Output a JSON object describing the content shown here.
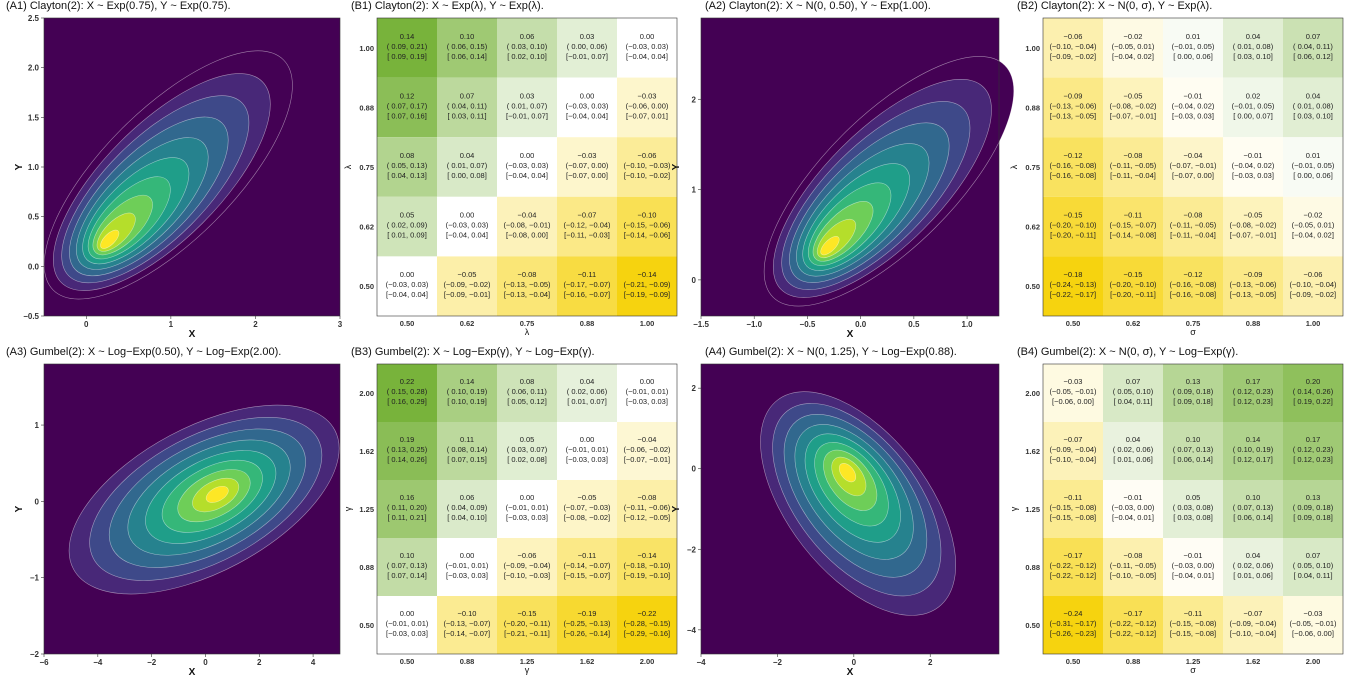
{
  "colors": {
    "density_background": "#440154",
    "density_low": "#3b528b",
    "density_high": "#fde725",
    "heat_negative": "#f6d30f",
    "heat_zero": "#ffffff",
    "heat_positive": "#78b33b"
  },
  "chart_data": [
    {
      "id": "A1",
      "type": "density",
      "title": "(A1) Clayton(2): X ~ Exp(0.75), Y ~ Exp(0.75).",
      "xlabel": "X",
      "ylabel": "Y",
      "xlim": [
        -0.5,
        3
      ],
      "ylim": [
        -0.5,
        2.5
      ],
      "xticks": [
        0,
        1,
        2,
        3
      ],
      "yticks": [
        -0.5,
        0.0,
        0.5,
        1.0,
        1.5,
        2.0,
        2.5
      ],
      "xtick_labels": [
        "0",
        "1",
        "2",
        "3"
      ],
      "ytick_labels": [
        "−0.5",
        "0.0",
        "0.5",
        "1.0",
        "1.5",
        "2.0",
        "2.5"
      ],
      "mode": [
        0.2,
        0.2
      ],
      "shape": "skewed",
      "contour_levels": 10
    },
    {
      "id": "B1",
      "type": "heatmap",
      "title": "(B1) Clayton(2): X ~ Exp(λ), Y ~ Exp(λ).",
      "xlabel": "λ",
      "ylabel": "λ",
      "x": [
        "0.50",
        "0.62",
        "0.75",
        "0.88",
        "1.00"
      ],
      "y": [
        "0.50",
        "0.62",
        "0.75",
        "0.88",
        "1.00"
      ],
      "rows": [
        {
          "y": "1.00",
          "cells": [
            [
              "0.14",
              "( 0.09, 0.21)",
              "[ 0.09, 0.19]"
            ],
            [
              "0.10",
              "( 0.06, 0.15)",
              "[ 0.06, 0.14]"
            ],
            [
              "0.06",
              "( 0.03, 0.10)",
              "[ 0.02, 0.10]"
            ],
            [
              "0.03",
              "( 0.00, 0.06)",
              "[−0.01, 0.07]"
            ],
            [
              "0.00",
              "(−0.03, 0.03)",
              "[−0.04, 0.04]"
            ]
          ]
        },
        {
          "y": "0.88",
          "cells": [
            [
              "0.12",
              "( 0.07, 0.17)",
              "[ 0.07, 0.16]"
            ],
            [
              "0.07",
              "( 0.04, 0.11)",
              "[ 0.03, 0.11]"
            ],
            [
              "0.03",
              "( 0.01, 0.07)",
              "[−0.01, 0.07]"
            ],
            [
              "0.00",
              "(−0.03, 0.03)",
              "[−0.04, 0.04]"
            ],
            [
              "−0.03",
              "(−0.06, 0.00)",
              "[−0.07, 0.01]"
            ]
          ]
        },
        {
          "y": "0.75",
          "cells": [
            [
              "0.08",
              "( 0.05, 0.13)",
              "[ 0.04, 0.13]"
            ],
            [
              "0.04",
              "( 0.01, 0.07)",
              "[ 0.00, 0.08]"
            ],
            [
              "0.00",
              "(−0.03, 0.03)",
              "[−0.04, 0.04]"
            ],
            [
              "−0.03",
              "(−0.07, 0.00)",
              "[−0.07, 0.00]"
            ],
            [
              "−0.06",
              "(−0.10, −0.03)",
              "[−0.10, −0.02]"
            ]
          ]
        },
        {
          "y": "0.62",
          "cells": [
            [
              "0.05",
              "( 0.02, 0.09)",
              "[ 0.01, 0.09]"
            ],
            [
              "0.00",
              "(−0.03, 0.03)",
              "[−0.04, 0.04]"
            ],
            [
              "−0.04",
              "(−0.08, −0.01)",
              "[−0.08, 0.00]"
            ],
            [
              "−0.07",
              "(−0.12, −0.04)",
              "[−0.11, −0.03]"
            ],
            [
              "−0.10",
              "(−0.15, −0.06)",
              "[−0.14, −0.06]"
            ]
          ]
        },
        {
          "y": "0.50",
          "cells": [
            [
              "0.00",
              "(−0.03, 0.03)",
              "[−0.04, 0.04]"
            ],
            [
              "−0.05",
              "(−0.09, −0.02)",
              "[−0.09, −0.01]"
            ],
            [
              "−0.08",
              "(−0.13, −0.05)",
              "[−0.13, −0.04]"
            ],
            [
              "−0.11",
              "(−0.17, −0.07)",
              "[−0.16, −0.07]"
            ],
            [
              "−0.14",
              "(−0.21, −0.09)",
              "[−0.19, −0.09]"
            ]
          ]
        }
      ]
    },
    {
      "id": "A2",
      "type": "density",
      "title": "(A2) Clayton(2): X ~ N(0, 0.50), Y ~ Exp(1.00).",
      "xlabel": "X",
      "ylabel": "Y",
      "xlim": [
        -1.5,
        1.3
      ],
      "ylim": [
        -0.4,
        2.9
      ],
      "xticks": [
        -1.5,
        -1.0,
        -0.5,
        0.0,
        0.5,
        1.0
      ],
      "yticks": [
        0,
        1,
        2
      ],
      "xtick_labels": [
        "−1.5",
        "−1.0",
        "−0.5",
        "0.0",
        "0.5",
        "1.0"
      ],
      "ytick_labels": [
        "0",
        "1",
        "2"
      ],
      "mode": [
        -0.35,
        0.3
      ],
      "shape": "skewed",
      "contour_levels": 10
    },
    {
      "id": "B2",
      "type": "heatmap",
      "title": "(B2) Clayton(2): X ~ N(0, σ), Y ~ Exp(λ).",
      "xlabel": "σ",
      "ylabel": "λ",
      "x": [
        "0.50",
        "0.62",
        "0.75",
        "0.88",
        "1.00"
      ],
      "y": [
        "0.50",
        "0.62",
        "0.75",
        "0.88",
        "1.00"
      ],
      "rows": [
        {
          "y": "1.00",
          "cells": [
            [
              "−0.06",
              "(−0.10, −0.04)",
              "[−0.09, −0.02]"
            ],
            [
              "−0.02",
              "(−0.05, 0.01)",
              "[−0.04, 0.02]"
            ],
            [
              "0.01",
              "(−0.01, 0.05)",
              "[ 0.00, 0.06]"
            ],
            [
              "0.04",
              "( 0.01, 0.08)",
              "[ 0.03, 0.10]"
            ],
            [
              "0.07",
              "( 0.04, 0.11)",
              "[ 0.06, 0.12]"
            ]
          ]
        },
        {
          "y": "0.88",
          "cells": [
            [
              "−0.09",
              "(−0.13, −0.06)",
              "[−0.13, −0.05]"
            ],
            [
              "−0.05",
              "(−0.08, −0.02)",
              "[−0.07, −0.01]"
            ],
            [
              "−0.01",
              "(−0.04, 0.02)",
              "[−0.03, 0.03]"
            ],
            [
              "0.02",
              "(−0.01, 0.05)",
              "[ 0.00, 0.07]"
            ],
            [
              "0.04",
              "( 0.01, 0.08)",
              "[ 0.03, 0.10]"
            ]
          ]
        },
        {
          "y": "0.75",
          "cells": [
            [
              "−0.12",
              "(−0.16, −0.08)",
              "[−0.16, −0.08]"
            ],
            [
              "−0.08",
              "(−0.11, −0.05)",
              "[−0.11, −0.04]"
            ],
            [
              "−0.04",
              "(−0.07, −0.01)",
              "[−0.07, 0.00]"
            ],
            [
              "−0.01",
              "(−0.04, 0.02)",
              "[−0.03, 0.03]"
            ],
            [
              "0.01",
              "(−0.01, 0.05)",
              "[ 0.00, 0.06]"
            ]
          ]
        },
        {
          "y": "0.62",
          "cells": [
            [
              "−0.15",
              "(−0.20, −0.10)",
              "[−0.20, −0.11]"
            ],
            [
              "−0.11",
              "(−0.15, −0.07)",
              "[−0.14, −0.08]"
            ],
            [
              "−0.08",
              "(−0.11, −0.05)",
              "[−0.11, −0.04]"
            ],
            [
              "−0.05",
              "(−0.08, −0.02)",
              "[−0.07, −0.01]"
            ],
            [
              "−0.02",
              "(−0.05, 0.01)",
              "[−0.04, 0.02]"
            ]
          ]
        },
        {
          "y": "0.50",
          "cells": [
            [
              "−0.18",
              "(−0.24, −0.13)",
              "[−0.22, −0.17]"
            ],
            [
              "−0.15",
              "(−0.20, −0.10)",
              "[−0.20, −0.11]"
            ],
            [
              "−0.12",
              "(−0.16, −0.08)",
              "[−0.16, −0.08]"
            ],
            [
              "−0.09",
              "(−0.13, −0.06)",
              "[−0.13, −0.05]"
            ],
            [
              "−0.06",
              "(−0.10, −0.04)",
              "[−0.09, −0.02]"
            ]
          ]
        }
      ]
    },
    {
      "id": "A3",
      "type": "density",
      "title": "(A3) Gumbel(2): X ~ Log−Exp(0.50), Y ~ Log−Exp(2.00).",
      "xlabel": "X",
      "ylabel": "Y",
      "xlim": [
        -6,
        5
      ],
      "ylim": [
        -2,
        1.8
      ],
      "xticks": [
        -6,
        -4,
        -2,
        0,
        2,
        4
      ],
      "yticks": [
        -2,
        -1,
        0,
        1
      ],
      "xtick_labels": [
        "−6",
        "−4",
        "−2",
        "0",
        "2",
        "4"
      ],
      "ytick_labels": [
        "−2",
        "−1",
        "0",
        "1"
      ],
      "mode": [
        0.5,
        0.1
      ],
      "shape": "positive",
      "contour_levels": 9
    },
    {
      "id": "B3",
      "type": "heatmap",
      "title": "(B3) Gumbel(2): X ~ Log−Exp(γ), Y ~ Log−Exp(γ).",
      "xlabel": "γ",
      "ylabel": "γ",
      "x": [
        "0.50",
        "0.88",
        "1.25",
        "1.62",
        "2.00"
      ],
      "y": [
        "0.50",
        "0.88",
        "1.25",
        "1.62",
        "2.00"
      ],
      "rows": [
        {
          "y": "2.00",
          "cells": [
            [
              "0.22",
              "( 0.15, 0.28)",
              "[ 0.16, 0.29]"
            ],
            [
              "0.14",
              "( 0.10, 0.19)",
              "[ 0.10, 0.19]"
            ],
            [
              "0.08",
              "( 0.06, 0.11)",
              "[ 0.05, 0.12]"
            ],
            [
              "0.04",
              "( 0.02, 0.06)",
              "[ 0.01, 0.07]"
            ],
            [
              "0.00",
              "(−0.01, 0.01)",
              "[−0.03, 0.03]"
            ]
          ]
        },
        {
          "y": "1.62",
          "cells": [
            [
              "0.19",
              "( 0.13, 0.25)",
              "[ 0.14, 0.26]"
            ],
            [
              "0.11",
              "( 0.08, 0.14)",
              "[ 0.07, 0.15]"
            ],
            [
              "0.05",
              "( 0.03, 0.07)",
              "[ 0.02, 0.08]"
            ],
            [
              "0.00",
              "(−0.01, 0.01)",
              "[−0.03, 0.03]"
            ],
            [
              "−0.04",
              "(−0.06, −0.02)",
              "[−0.07, −0.01]"
            ]
          ]
        },
        {
          "y": "1.25",
          "cells": [
            [
              "0.16",
              "( 0.11, 0.20)",
              "[ 0.11, 0.21]"
            ],
            [
              "0.06",
              "( 0.04, 0.09)",
              "[ 0.04, 0.10]"
            ],
            [
              "0.00",
              "(−0.01, 0.01)",
              "[−0.03, 0.03]"
            ],
            [
              "−0.05",
              "(−0.07, −0.03)",
              "[−0.08, −0.02]"
            ],
            [
              "−0.08",
              "(−0.11, −0.06)",
              "[−0.12, −0.05]"
            ]
          ]
        },
        {
          "y": "0.88",
          "cells": [
            [
              "0.10",
              "( 0.07, 0.13)",
              "[ 0.07, 0.14]"
            ],
            [
              "0.00",
              "(−0.01, 0.01)",
              "[−0.03, 0.03]"
            ],
            [
              "−0.06",
              "(−0.09, −0.04)",
              "[−0.10, −0.03]"
            ],
            [
              "−0.11",
              "(−0.14, −0.07)",
              "[−0.15, −0.07]"
            ],
            [
              "−0.14",
              "(−0.18, −0.10)",
              "[−0.19, −0.10]"
            ]
          ]
        },
        {
          "y": "0.50",
          "cells": [
            [
              "0.00",
              "(−0.01, 0.01)",
              "[−0.03, 0.03]"
            ],
            [
              "−0.10",
              "(−0.13, −0.07)",
              "[−0.14, −0.07]"
            ],
            [
              "−0.15",
              "(−0.20, −0.11)",
              "[−0.21, −0.11]"
            ],
            [
              "−0.19",
              "(−0.25, −0.13)",
              "[−0.26, −0.14]"
            ],
            [
              "−0.22",
              "(−0.28, −0.15)",
              "[−0.29, −0.16]"
            ]
          ]
        }
      ]
    },
    {
      "id": "A4",
      "type": "density",
      "title": "(A4) Gumbel(2): X ~ N(0, 1.25), Y ~ Log−Exp(0.88).",
      "xlabel": "X",
      "ylabel": "Y",
      "xlim": [
        -4,
        3.8
      ],
      "ylim": [
        -4.6,
        2.6
      ],
      "xticks": [
        -4,
        -2,
        0,
        2
      ],
      "yticks": [
        -4,
        -2,
        0,
        2
      ],
      "xtick_labels": [
        "−4",
        "−2",
        "0",
        "2"
      ],
      "ytick_labels": [
        "−4",
        "−2",
        "0",
        "2"
      ],
      "mode": [
        -0.2,
        0.0
      ],
      "shape": "negative",
      "contour_levels": 9
    },
    {
      "id": "B4",
      "type": "heatmap",
      "title": "(B4) Gumbel(2): X ~ N(0, σ), Y ~ Log−Exp(γ).",
      "xlabel": "σ",
      "ylabel": "γ",
      "x": [
        "0.50",
        "0.88",
        "1.25",
        "1.62",
        "2.00"
      ],
      "y": [
        "0.50",
        "0.88",
        "1.25",
        "1.62",
        "2.00"
      ],
      "rows": [
        {
          "y": "2.00",
          "cells": [
            [
              "−0.03",
              "(−0.05, −0.01)",
              "[−0.06, 0.00]"
            ],
            [
              "0.07",
              "( 0.05, 0.10)",
              "[ 0.04, 0.11]"
            ],
            [
              "0.13",
              "( 0.09, 0.18)",
              "[ 0.09, 0.18]"
            ],
            [
              "0.17",
              "( 0.12, 0.23)",
              "[ 0.12, 0.23]"
            ],
            [
              "0.20",
              "( 0.14, 0.26)",
              "[ 0.19, 0.22]"
            ]
          ]
        },
        {
          "y": "1.62",
          "cells": [
            [
              "−0.07",
              "(−0.09, −0.04)",
              "[−0.10, −0.04]"
            ],
            [
              "0.04",
              "( 0.02, 0.06)",
              "[ 0.01, 0.06]"
            ],
            [
              "0.10",
              "( 0.07, 0.13)",
              "[ 0.06, 0.14]"
            ],
            [
              "0.14",
              "( 0.10, 0.19)",
              "[ 0.12, 0.17]"
            ],
            [
              "0.17",
              "( 0.12, 0.23)",
              "[ 0.12, 0.23]"
            ]
          ]
        },
        {
          "y": "1.25",
          "cells": [
            [
              "−0.11",
              "(−0.15, −0.08)",
              "[−0.15, −0.08]"
            ],
            [
              "−0.01",
              "(−0.03, 0.00)",
              "[−0.04, 0.01]"
            ],
            [
              "0.05",
              "( 0.03, 0.08)",
              "[ 0.03, 0.08]"
            ],
            [
              "0.10",
              "( 0.07, 0.13)",
              "[ 0.06, 0.14]"
            ],
            [
              "0.13",
              "( 0.09, 0.18)",
              "[ 0.09, 0.18]"
            ]
          ]
        },
        {
          "y": "0.88",
          "cells": [
            [
              "−0.17",
              "(−0.22, −0.12)",
              "[−0.22, −0.12]"
            ],
            [
              "−0.08",
              "(−0.11, −0.05)",
              "[−0.10, −0.05]"
            ],
            [
              "−0.01",
              "(−0.03, 0.00)",
              "[−0.04, 0.01]"
            ],
            [
              "0.04",
              "( 0.02, 0.06)",
              "[ 0.01, 0.06]"
            ],
            [
              "0.07",
              "( 0.05, 0.10)",
              "[ 0.04, 0.11]"
            ]
          ]
        },
        {
          "y": "0.50",
          "cells": [
            [
              "−0.24",
              "(−0.31, −0.17)",
              "[−0.26, −0.23]"
            ],
            [
              "−0.17",
              "(−0.22, −0.12)",
              "[−0.22, −0.12]"
            ],
            [
              "−0.11",
              "(−0.15, −0.08)",
              "[−0.15, −0.08]"
            ],
            [
              "−0.07",
              "(−0.09, −0.04)",
              "[−0.10, −0.04]"
            ],
            [
              "−0.03",
              "(−0.05, −0.01)",
              "[−0.06, 0.00]"
            ]
          ]
        }
      ]
    }
  ]
}
